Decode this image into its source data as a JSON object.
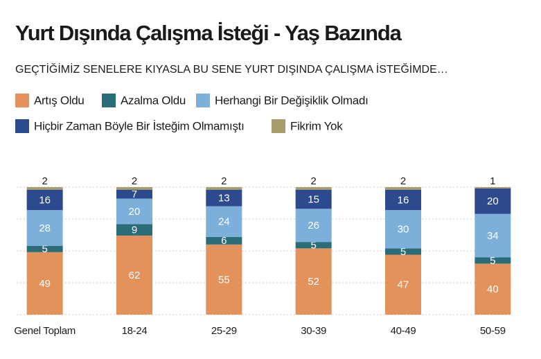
{
  "chart_data": {
    "type": "stacked_bar",
    "title": "Yurt Dışında Çalışma İsteği - Yaş Bazında",
    "subtitle": "GEÇTİĞİMİZ SENELERE KIYASLA BU SENE YURT DIŞINDA ÇALIŞMA İSTEĞİMDE…",
    "categories": [
      "Genel Toplam",
      "18-24",
      "25-29",
      "30-39",
      "40-49",
      "50-59"
    ],
    "series": [
      {
        "name": "Artış Oldu",
        "color": "#e2925a",
        "values": [
          49,
          62,
          55,
          52,
          47,
          40
        ]
      },
      {
        "name": "Azalma Oldu",
        "color": "#2b6c79",
        "values": [
          5,
          9,
          6,
          5,
          5,
          5
        ]
      },
      {
        "name": "Herhangi Bir Değişiklik Olmadı",
        "color": "#7cb0db",
        "values": [
          28,
          20,
          24,
          26,
          30,
          34
        ]
      },
      {
        "name": "Hiçbir Zaman Böyle Bir İsteğim Olmamıştı",
        "color": "#2d4a8e",
        "values": [
          16,
          7,
          13,
          15,
          16,
          20
        ]
      },
      {
        "name": "Fikrim Yok",
        "color": "#a69c6c",
        "values": [
          2,
          2,
          2,
          2,
          2,
          1
        ]
      }
    ],
    "ylim": [
      0,
      100
    ],
    "yticks": [
      0,
      25,
      50,
      75,
      100
    ],
    "grid": true
  }
}
